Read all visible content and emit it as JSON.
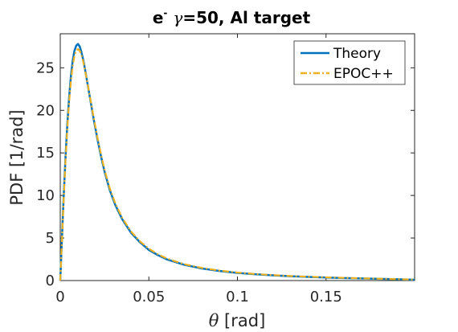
{
  "chart_data": {
    "type": "line",
    "title_prefix": "e",
    "title_superscript": "-",
    "title_gamma": "γ",
    "title_rest": "=50, Al target",
    "xlabel_symbol": "θ",
    "xlabel_unit": " [rad]",
    "ylabel": "PDF [1/rad]",
    "xlim": [
      0,
      0.2
    ],
    "ylim": [
      0,
      29
    ],
    "xticks": [
      0,
      0.05,
      0.1,
      0.15
    ],
    "xtick_labels": [
      "0",
      "0.05",
      "0.1",
      "0.15"
    ],
    "yticks": [
      0,
      5,
      10,
      15,
      20,
      25
    ],
    "ytick_labels": [
      "0",
      "5",
      "10",
      "15",
      "20",
      "25"
    ],
    "grid": false,
    "legend_position": "top-right",
    "series": [
      {
        "name": "Theory",
        "color": "#0072BD",
        "style": "solid",
        "x": [
          0,
          0.001,
          0.002,
          0.003,
          0.004,
          0.005,
          0.006,
          0.007,
          0.008,
          0.009,
          0.01,
          0.011,
          0.012,
          0.013,
          0.014,
          0.015,
          0.017,
          0.019,
          0.021,
          0.023,
          0.025,
          0.028,
          0.031,
          0.035,
          0.04,
          0.045,
          0.05,
          0.055,
          0.06,
          0.07,
          0.08,
          0.09,
          0.1,
          0.11,
          0.12,
          0.13,
          0.14,
          0.15,
          0.16,
          0.17,
          0.18,
          0.19,
          0.2
        ],
        "y": [
          0,
          5.2,
          10.2,
          14.6,
          18.4,
          21.5,
          24.0,
          25.8,
          27.0,
          27.6,
          27.8,
          27.5,
          26.8,
          25.9,
          24.8,
          23.6,
          21.2,
          18.8,
          16.6,
          14.6,
          12.8,
          10.6,
          8.9,
          7.2,
          5.6,
          4.5,
          3.6,
          3.0,
          2.5,
          1.85,
          1.42,
          1.12,
          0.9,
          0.74,
          0.61,
          0.51,
          0.43,
          0.36,
          0.3,
          0.25,
          0.2,
          0.15,
          0.1
        ]
      },
      {
        "name": "EPOC++",
        "color": "#EDB120",
        "style": "dashdot",
        "x": [
          0,
          0.001,
          0.002,
          0.003,
          0.004,
          0.005,
          0.006,
          0.007,
          0.008,
          0.009,
          0.01,
          0.011,
          0.012,
          0.013,
          0.014,
          0.015,
          0.017,
          0.019,
          0.021,
          0.023,
          0.025,
          0.028,
          0.031,
          0.035,
          0.04,
          0.045,
          0.05,
          0.055,
          0.06,
          0.07,
          0.08,
          0.09,
          0.1,
          0.11,
          0.12,
          0.13,
          0.14,
          0.15,
          0.16,
          0.17,
          0.18,
          0.19,
          0.2
        ],
        "y": [
          0,
          5.0,
          9.9,
          14.2,
          17.9,
          21.0,
          23.4,
          25.2,
          26.4,
          27.0,
          27.2,
          27.0,
          26.5,
          25.7,
          24.7,
          23.6,
          21.3,
          19.0,
          16.8,
          14.8,
          13.0,
          10.8,
          9.1,
          7.35,
          5.75,
          4.6,
          3.75,
          3.1,
          2.6,
          1.92,
          1.48,
          1.17,
          0.94,
          0.77,
          0.64,
          0.53,
          0.45,
          0.38,
          0.32,
          0.26,
          0.21,
          0.16,
          0.11
        ]
      }
    ]
  }
}
